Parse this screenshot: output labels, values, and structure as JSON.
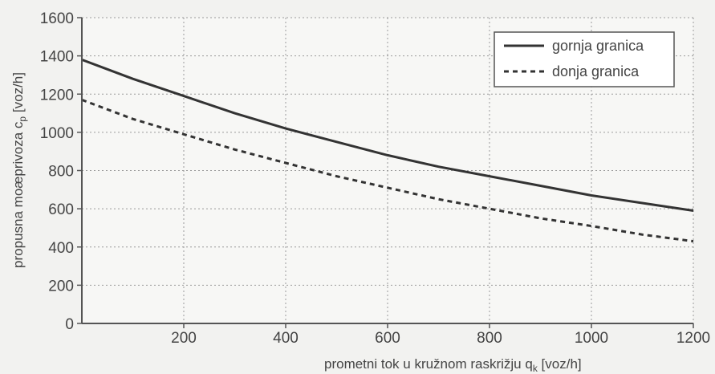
{
  "chart_data": {
    "type": "line",
    "xlabel": "prometni tok u kružnom raskrižju q",
    "xlabel_sub": "k",
    "xlabel_unit": " [voz/h]",
    "ylabel": "propusna moæprivoza c",
    "ylabel_sub": "p",
    "ylabel_unit": " [voz/h]",
    "xlim": [
      0,
      1200
    ],
    "ylim": [
      0,
      1600
    ],
    "xticks": [
      200,
      400,
      600,
      800,
      1000,
      1200
    ],
    "xtick_labels": [
      "200",
      "400",
      "600",
      "800",
      "1000",
      "1200"
    ],
    "yticks": [
      0,
      200,
      400,
      600,
      800,
      1000,
      1200,
      1400,
      1600
    ],
    "ytick_labels": [
      "0",
      "200",
      "400",
      "600",
      "800",
      "1000",
      "1200",
      "1400",
      "1600"
    ],
    "grid": true,
    "legend_position": "top-right",
    "series": [
      {
        "name": "gornja granica",
        "style": "solid",
        "color": "#333333",
        "x": [
          0,
          100,
          200,
          300,
          400,
          500,
          600,
          700,
          800,
          900,
          1000,
          1100,
          1200
        ],
        "y": [
          1380,
          1280,
          1190,
          1100,
          1020,
          950,
          880,
          820,
          770,
          720,
          670,
          630,
          590
        ]
      },
      {
        "name": "donja granica",
        "style": "dashed",
        "color": "#333333",
        "x": [
          0,
          100,
          200,
          300,
          400,
          500,
          600,
          700,
          800,
          900,
          1000,
          1100,
          1200
        ],
        "y": [
          1170,
          1070,
          990,
          910,
          840,
          770,
          710,
          650,
          600,
          550,
          510,
          465,
          430
        ]
      }
    ]
  }
}
